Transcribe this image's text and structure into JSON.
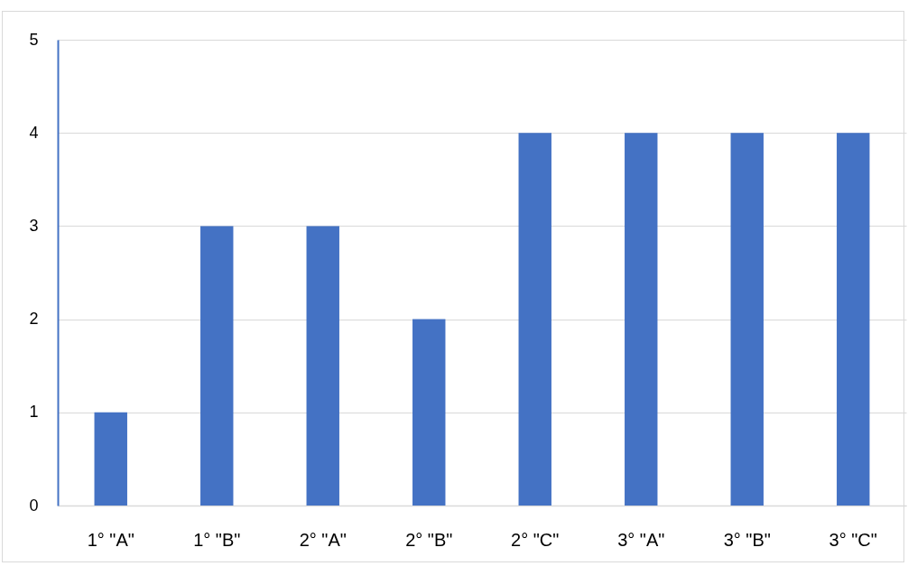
{
  "chart_data": {
    "type": "bar",
    "categories": [
      "1° \"A\"",
      "1° \"B\"",
      "2° \"A\"",
      "2° \"B\"",
      "2° \"C\"",
      "3° \"A\"",
      "3° \"B\"",
      "3° \"C\""
    ],
    "values": [
      1,
      3,
      3,
      2,
      4,
      4,
      4,
      4
    ],
    "color": "#4472c4",
    "ylim": [
      0,
      5
    ],
    "yticks": [
      0,
      1,
      2,
      3,
      4,
      5
    ],
    "grid": "y"
  }
}
